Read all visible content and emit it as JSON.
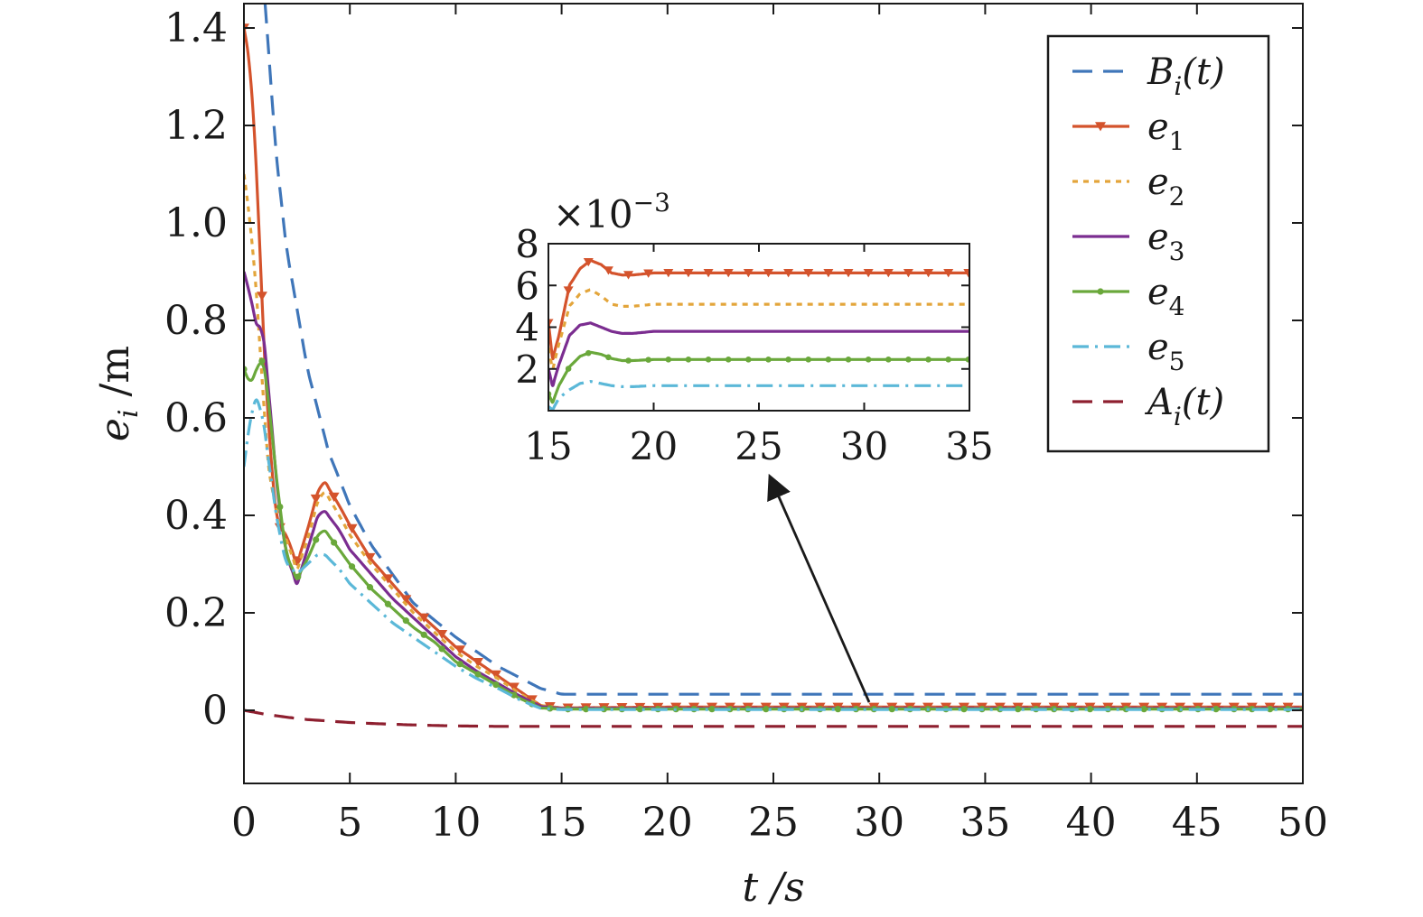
{
  "chart_data": [
    {
      "type": "line",
      "xlabel": "t /s",
      "ylabel": "e_i /m",
      "xlim": [
        0,
        50
      ],
      "ylim": [
        -0.15,
        1.45
      ],
      "xticks": [
        0,
        5,
        10,
        15,
        20,
        25,
        30,
        35,
        40,
        45,
        50
      ],
      "xtick_labels": [
        "0",
        "5",
        "10",
        "15",
        "20",
        "25",
        "30",
        "35",
        "40",
        "45",
        "50"
      ],
      "yticks": [
        0,
        0.2,
        0.4,
        0.6,
        0.8,
        1.0,
        1.2,
        1.4
      ],
      "ytick_labels": [
        "0",
        "0.2",
        "0.4",
        "0.6",
        "0.8",
        "1.0",
        "1.2",
        "1.4"
      ],
      "grid": false,
      "legend_position": "top-right",
      "series": [
        {
          "name": "Bi(t)",
          "label_main": "B",
          "label_sub": "i",
          "label_suffix": "(t)",
          "color": "#3f76b9",
          "style": "dashed",
          "marker": "none",
          "x": [
            1.0,
            1.5,
            2,
            3,
            4,
            5,
            6,
            8,
            10,
            12,
            14,
            15,
            20,
            30,
            40,
            50
          ],
          "y": [
            1.45,
            1.15,
            0.95,
            0.7,
            0.53,
            0.42,
            0.34,
            0.22,
            0.15,
            0.09,
            0.045,
            0.033,
            0.033,
            0.033,
            0.033,
            0.033
          ]
        },
        {
          "name": "e1",
          "label_main": "e",
          "label_sub": "1",
          "label_suffix": "",
          "color": "#d4532c",
          "style": "solid",
          "marker": "triangle-down",
          "x": [
            0,
            0.3,
            0.6,
            0.8,
            1.0,
            1.3,
            1.6,
            2.0,
            2.5,
            3.0,
            3.5,
            3.8,
            4.5,
            5,
            6,
            7,
            8,
            9,
            10,
            11,
            12,
            13,
            14,
            15,
            20,
            30,
            40,
            50
          ],
          "y": [
            1.4,
            1.32,
            1.1,
            0.9,
            0.7,
            0.5,
            0.38,
            0.36,
            0.3,
            0.37,
            0.45,
            0.47,
            0.42,
            0.38,
            0.31,
            0.26,
            0.21,
            0.17,
            0.13,
            0.1,
            0.07,
            0.04,
            0.01,
            0.005,
            0.0066,
            0.0066,
            0.0066,
            0.0066
          ]
        },
        {
          "name": "e2",
          "label_main": "e",
          "label_sub": "2",
          "label_suffix": "",
          "color": "#e3a53b",
          "style": "dotted",
          "marker": "none",
          "x": [
            0,
            0.3,
            0.6,
            0.9,
            1.2,
            1.6,
            2.0,
            2.5,
            3.0,
            3.5,
            3.8,
            4.5,
            5,
            6,
            7,
            8,
            9,
            10,
            11,
            12,
            13,
            14,
            15,
            20,
            30,
            40,
            50
          ],
          "y": [
            1.1,
            1.0,
            0.85,
            0.65,
            0.48,
            0.4,
            0.35,
            0.29,
            0.35,
            0.43,
            0.45,
            0.4,
            0.36,
            0.3,
            0.25,
            0.2,
            0.16,
            0.12,
            0.09,
            0.065,
            0.035,
            0.01,
            0.005,
            0.005,
            0.005,
            0.005,
            0.005
          ]
        },
        {
          "name": "e3",
          "label_main": "e",
          "label_sub": "3",
          "label_suffix": "",
          "color": "#7b2d90",
          "style": "solid",
          "marker": "none",
          "x": [
            0,
            0.3,
            0.6,
            0.9,
            1.2,
            1.6,
            2.0,
            2.5,
            3.0,
            3.5,
            3.8,
            4.5,
            5,
            6,
            7,
            8,
            9,
            10,
            11,
            12,
            13,
            14,
            15,
            20,
            30,
            40,
            50
          ],
          "y": [
            0.9,
            0.85,
            0.79,
            0.78,
            0.64,
            0.44,
            0.32,
            0.26,
            0.33,
            0.4,
            0.41,
            0.37,
            0.33,
            0.28,
            0.23,
            0.19,
            0.15,
            0.11,
            0.08,
            0.055,
            0.03,
            0.008,
            0.004,
            0.0038,
            0.0038,
            0.0038,
            0.0038
          ]
        },
        {
          "name": "e4",
          "label_main": "e",
          "label_sub": "4",
          "label_suffix": "",
          "color": "#6aa83b",
          "style": "solid",
          "marker": "dot",
          "x": [
            0,
            0.3,
            0.6,
            0.9,
            1.2,
            1.6,
            2.0,
            2.5,
            3.0,
            3.5,
            3.8,
            4.5,
            5,
            6,
            7,
            8,
            9,
            10,
            11,
            12,
            13,
            14,
            15,
            20,
            30,
            40,
            50
          ],
          "y": [
            0.7,
            0.67,
            0.7,
            0.72,
            0.62,
            0.45,
            0.32,
            0.27,
            0.31,
            0.36,
            0.37,
            0.33,
            0.3,
            0.25,
            0.21,
            0.17,
            0.14,
            0.1,
            0.075,
            0.05,
            0.025,
            0.005,
            0.0025,
            0.0025,
            0.0025,
            0.0025,
            0.0025
          ]
        },
        {
          "name": "e5",
          "label_main": "e",
          "label_sub": "5",
          "label_suffix": "",
          "color": "#5bb8d8",
          "style": "dashdot",
          "marker": "none",
          "x": [
            0,
            0.3,
            0.6,
            0.9,
            1.2,
            1.6,
            2.0,
            2.5,
            3.0,
            3.5,
            3.8,
            4.5,
            5,
            6,
            7,
            8,
            9,
            10,
            11,
            12,
            13,
            14,
            15,
            20,
            30,
            40,
            50
          ],
          "y": [
            0.5,
            0.6,
            0.64,
            0.6,
            0.5,
            0.38,
            0.3,
            0.28,
            0.3,
            0.32,
            0.32,
            0.29,
            0.26,
            0.22,
            0.18,
            0.15,
            0.12,
            0.09,
            0.065,
            0.045,
            0.022,
            0.004,
            0.0014,
            0.0014,
            0.0014,
            0.0014,
            0.0014
          ]
        },
        {
          "name": "Ai(t)",
          "label_main": "A",
          "label_sub": "i",
          "label_suffix": "(t)",
          "color": "#8e1f2f",
          "style": "dashed",
          "marker": "none",
          "x": [
            0,
            1,
            2,
            3,
            4,
            5,
            6,
            8,
            10,
            12,
            14,
            15,
            20,
            30,
            40,
            50
          ],
          "y": [
            0,
            -0.008,
            -0.014,
            -0.019,
            -0.022,
            -0.025,
            -0.027,
            -0.03,
            -0.032,
            -0.033,
            -0.033,
            -0.033,
            -0.033,
            -0.033,
            -0.033,
            -0.033
          ]
        }
      ]
    },
    {
      "type": "line",
      "role": "inset",
      "multiplier_label": "×10",
      "multiplier_exp": "−3",
      "xlim": [
        15,
        35
      ],
      "ylim": [
        0,
        8
      ],
      "xticks": [
        15,
        20,
        25,
        30,
        35
      ],
      "xtick_labels": [
        "15",
        "20",
        "25",
        "30",
        "35"
      ],
      "yticks": [
        2,
        4,
        6,
        8
      ],
      "ytick_labels": [
        "2",
        "4",
        "6",
        "8"
      ],
      "series": [
        {
          "name": "e1",
          "color": "#d4532c",
          "style": "solid",
          "marker": "triangle-down",
          "x": [
            15,
            15.2,
            15.5,
            16,
            16.5,
            17,
            17.5,
            18,
            18.5,
            19,
            20,
            22,
            25,
            30,
            35
          ],
          "y": [
            4.2,
            2.5,
            3.6,
            6.0,
            6.8,
            7.2,
            7.0,
            6.6,
            6.5,
            6.5,
            6.6,
            6.6,
            6.6,
            6.6,
            6.6
          ]
        },
        {
          "name": "e2",
          "color": "#e3a53b",
          "style": "dotted",
          "marker": "none",
          "x": [
            15,
            15.2,
            15.5,
            16,
            16.5,
            17,
            17.5,
            18,
            18.5,
            19,
            20,
            22,
            25,
            30,
            35
          ],
          "y": [
            3.0,
            2.0,
            3.2,
            5.0,
            5.6,
            5.8,
            5.5,
            5.1,
            5.0,
            5.0,
            5.1,
            5.1,
            5.1,
            5.1,
            5.1
          ]
        },
        {
          "name": "e3",
          "color": "#7b2d90",
          "style": "solid",
          "marker": "none",
          "x": [
            15,
            15.2,
            15.5,
            16,
            16.5,
            17,
            17.5,
            18,
            18.5,
            19,
            20,
            22,
            25,
            30,
            35
          ],
          "y": [
            2.0,
            1.2,
            2.2,
            3.6,
            4.1,
            4.2,
            4.0,
            3.8,
            3.7,
            3.7,
            3.8,
            3.8,
            3.8,
            3.8,
            3.8
          ]
        },
        {
          "name": "e4",
          "color": "#6aa83b",
          "style": "solid",
          "marker": "dot",
          "x": [
            15,
            15.2,
            15.5,
            16,
            16.5,
            17,
            17.5,
            18,
            18.5,
            19,
            20,
            22,
            25,
            30,
            35
          ],
          "y": [
            0.8,
            0.4,
            1.2,
            2.1,
            2.6,
            2.8,
            2.7,
            2.5,
            2.4,
            2.4,
            2.45,
            2.45,
            2.45,
            2.45,
            2.45
          ]
        },
        {
          "name": "e5",
          "color": "#5bb8d8",
          "style": "dashdot",
          "marker": "none",
          "x": [
            15,
            15.2,
            15.5,
            16,
            16.5,
            17,
            17.5,
            18,
            18.5,
            19,
            20,
            22,
            25,
            30,
            35
          ],
          "y": [
            0.2,
            0.05,
            0.6,
            1.0,
            1.3,
            1.4,
            1.3,
            1.2,
            1.15,
            1.15,
            1.2,
            1.2,
            1.2,
            1.2,
            1.2
          ]
        }
      ]
    }
  ]
}
